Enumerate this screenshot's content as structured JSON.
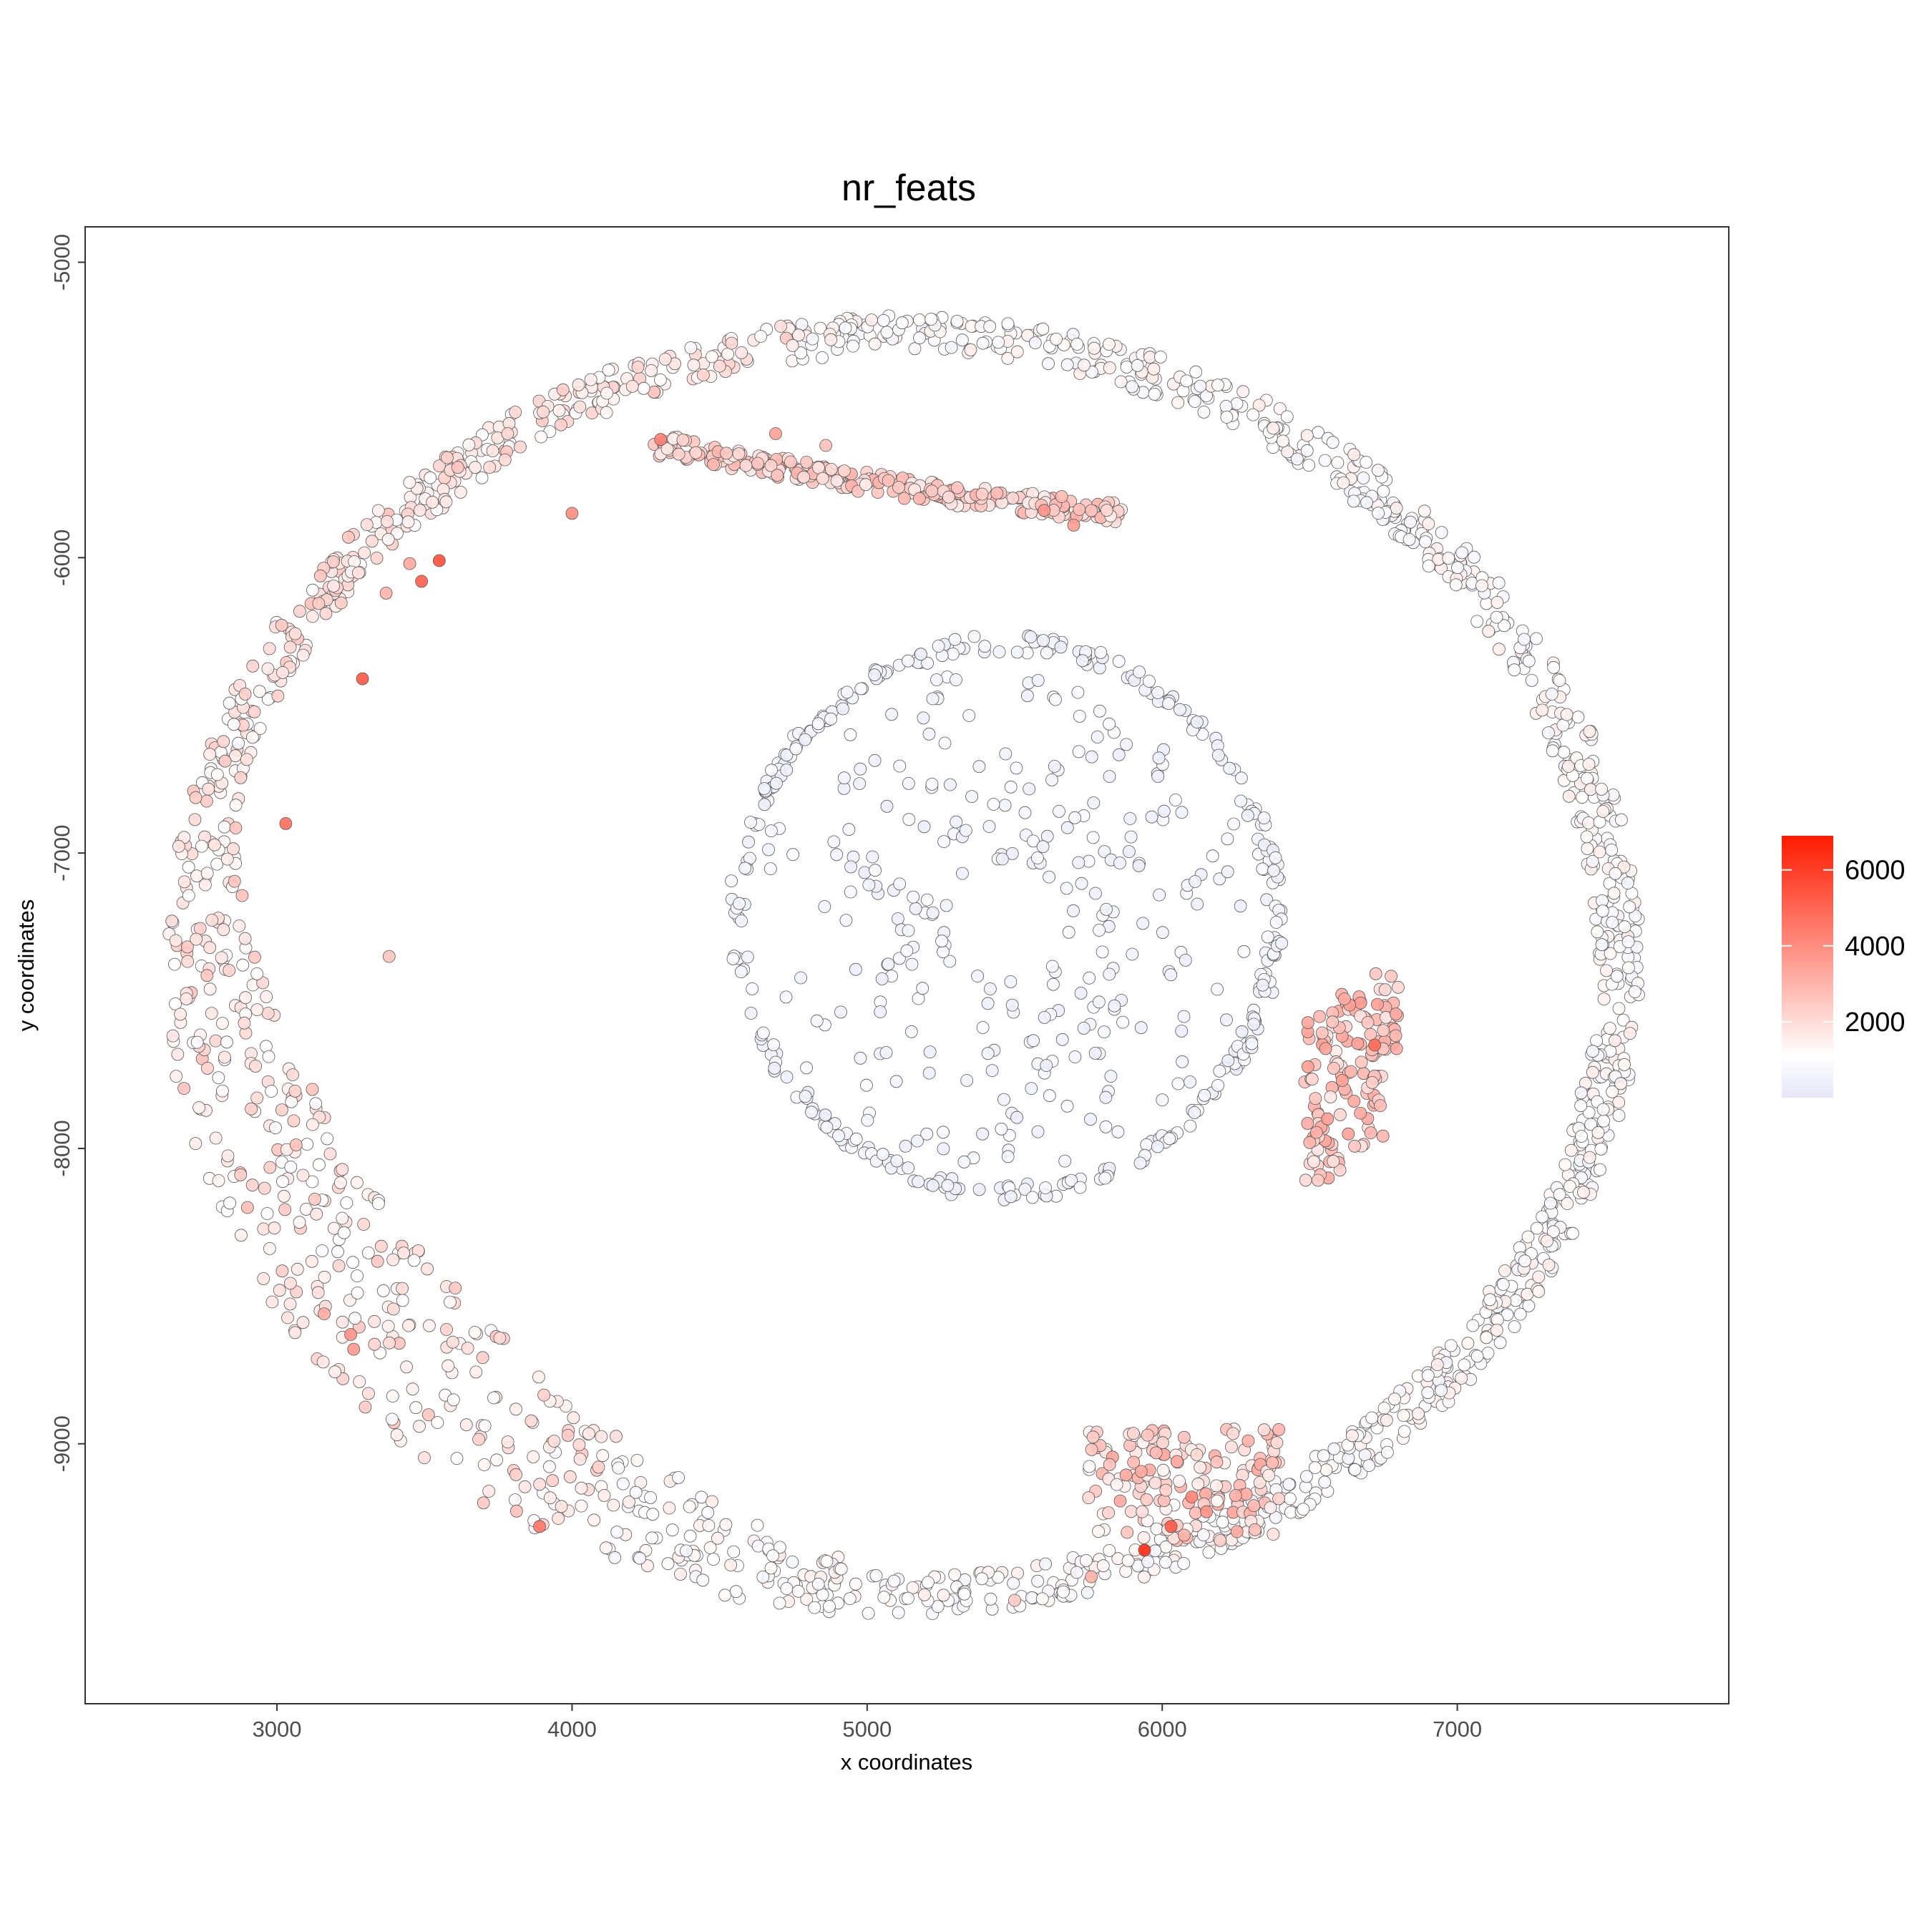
{
  "chart_data": {
    "type": "scatter",
    "title": "nr_feats",
    "xlabel": "x coordinates",
    "ylabel": "y coordinates",
    "xlim": [
      2350,
      7920
    ],
    "ylim": [
      -9880,
      -4880
    ],
    "x_ticks": [
      3000,
      4000,
      5000,
      6000,
      7000
    ],
    "x_tick_labels": [
      "3000",
      "4000",
      "5000",
      "6000",
      "7000"
    ],
    "y_ticks": [
      -5000,
      -6000,
      -7000,
      -8000,
      -9000
    ],
    "y_tick_labels": [
      "-5000",
      "-6000",
      "-7000",
      "-8000",
      "-9000"
    ],
    "grid": false,
    "legend_position": "right",
    "color_scale": {
      "variable": "nr_feats",
      "range": [
        0,
        6900
      ],
      "low_color": "#e6e6fa",
      "mid_color": "#ffffff",
      "high_color": "#ff1a00",
      "mid_value": 1100,
      "breaks": [
        2000,
        4000,
        6000
      ],
      "break_labels": [
        "2000",
        "4000",
        "6000"
      ]
    },
    "notes": "Thousands of spatial cell points form two rings: an outer ring (~5000-7600 x, -9600 to -5150 y) and an inner ring (~4500-6400 x, -8200 to -6200 y), with a dense tissue cluster near x 6500-6800, y -7500 to -8100. Most cells fall in the 500-2500 range; the highest values (4000-6500) appear on the upper-left arc and near the bottom (x ~5900-6200, y ~-9200).",
    "series": [
      {
        "name": "",
        "points": [
          [
            3550,
            -6010,
            5600
          ],
          [
            3490,
            -6080,
            5200
          ],
          [
            3290,
            -6410,
            5400
          ],
          [
            3030,
            -6900,
            4800
          ],
          [
            3890,
            -9280,
            4600
          ],
          [
            5940,
            -9360,
            6500
          ],
          [
            6030,
            -9280,
            5300
          ],
          [
            6720,
            -7650,
            4900
          ],
          [
            4300,
            -5600,
            4300
          ],
          [
            4000,
            -5850,
            4000
          ],
          [
            3250,
            -8630,
            3900
          ],
          [
            3260,
            -8680,
            3700
          ],
          [
            4690,
            -5580,
            3500
          ],
          [
            5600,
            -5840,
            3800
          ],
          [
            5700,
            -5890,
            3600
          ],
          [
            6100,
            -9180,
            4200
          ],
          [
            6150,
            -9230,
            3900
          ],
          [
            6560,
            -7900,
            3600
          ],
          [
            6610,
            -7770,
            3500
          ],
          [
            3450,
            -6020,
            3300
          ],
          [
            3160,
            -8560,
            3200
          ],
          [
            2900,
            -8200,
            2800
          ],
          [
            3370,
            -6120,
            3000
          ],
          [
            4860,
            -5620,
            2700
          ],
          [
            3700,
            -9200,
            2500
          ],
          [
            5500,
            -9530,
            2400
          ],
          [
            5760,
            -9450,
            3100
          ],
          [
            6500,
            -7980,
            3000
          ],
          [
            6650,
            -7840,
            3300
          ],
          [
            3380,
            -7350,
            2600
          ],
          [
            3120,
            -7800,
            2600
          ],
          [
            6050,
            -9060,
            3400
          ]
        ]
      }
    ]
  }
}
